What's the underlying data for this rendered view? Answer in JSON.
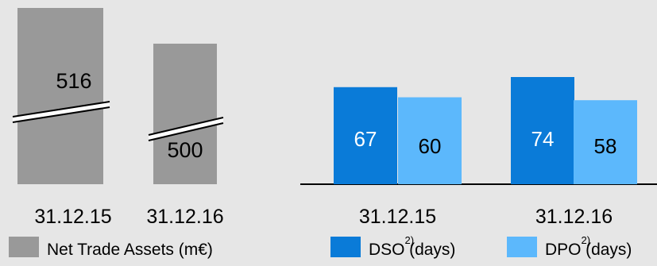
{
  "chart_data": [
    {
      "type": "bar",
      "categories": [
        "31.12.15",
        "31.12.16"
      ],
      "series": [
        {
          "name": "Net Trade Assets (m€)",
          "values": [
            516,
            500
          ],
          "color": "#999999"
        }
      ],
      "axis_break": true,
      "legend": {
        "position": "bottom",
        "label": "Net Trade Assets (m€)"
      }
    },
    {
      "type": "bar",
      "categories": [
        "31.12.15",
        "31.12.16"
      ],
      "series": [
        {
          "name": "DSO",
          "values": [
            67,
            74
          ],
          "color": "#0a7bd8"
        },
        {
          "name": "DPO",
          "values": [
            60,
            58
          ],
          "color": "#5cb8fc"
        }
      ],
      "legend": {
        "position": "bottom",
        "items": [
          {
            "label": "DSO",
            "sup": "2)",
            "suffix": "(days)"
          },
          {
            "label": "DPO",
            "sup": "2)",
            "suffix": "(days)"
          }
        ]
      }
    }
  ]
}
